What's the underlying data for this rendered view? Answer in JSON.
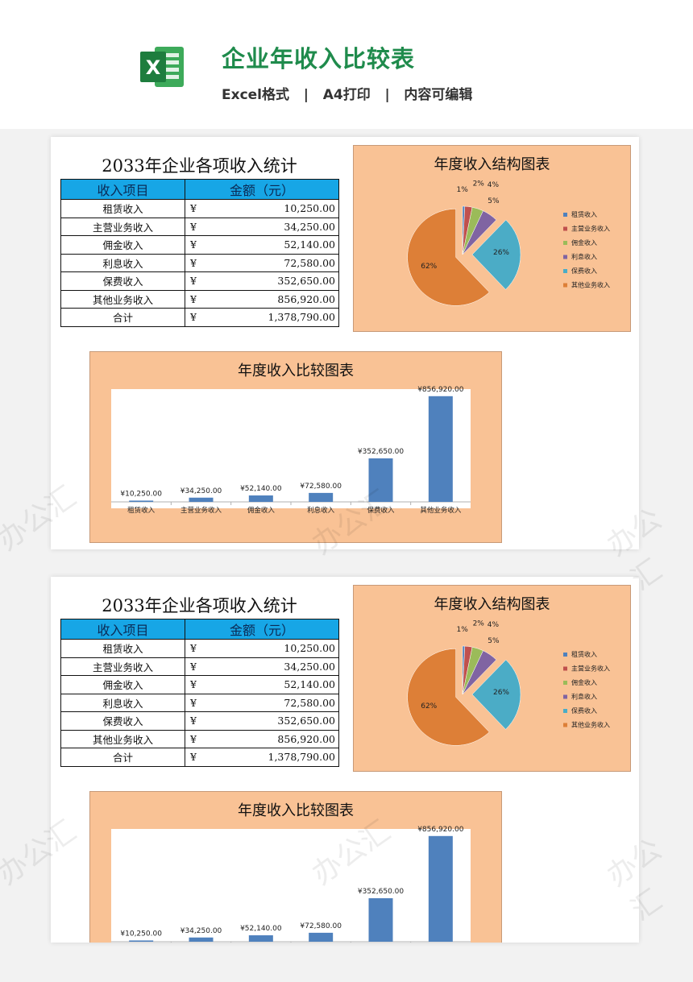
{
  "header": {
    "logo_letter": "X",
    "title": "企业年收入比较表",
    "subtitle": "Excel格式   |   A4打印   |   内容可编辑"
  },
  "colors": {
    "brand_green": "#1f8b4c",
    "table_header": "#17a6e6",
    "panel_bg": "#f9c295",
    "bar": "#4f81bd"
  },
  "watermark": "办公汇",
  "sheet": {
    "title": "2033年企业各项收入统计",
    "table": {
      "headers": [
        "收入项目",
        "金额（元）"
      ],
      "currency": "¥",
      "rows": [
        {
          "name": "租赁收入",
          "amount": "10,250.00"
        },
        {
          "name": "主营业务收入",
          "amount": "34,250.00"
        },
        {
          "name": "佣金收入",
          "amount": "52,140.00"
        },
        {
          "name": "利息收入",
          "amount": "72,580.00"
        },
        {
          "name": "保费收入",
          "amount": "352,650.00"
        },
        {
          "name": "其他业务收入",
          "amount": "856,920.00"
        },
        {
          "name": "合计",
          "amount": "1,378,790.00"
        }
      ]
    },
    "pie_title": "年度收入结构图表",
    "bar_title": "年度收入比较图表"
  },
  "chart_data": [
    {
      "type": "pie",
      "title": "年度收入结构图表",
      "categories": [
        "租赁收入",
        "主营业务收入",
        "佣金收入",
        "利息收入",
        "保费收入",
        "其他业务收入"
      ],
      "values": [
        10250,
        34250,
        52140,
        72580,
        352650,
        856920
      ],
      "data_labels": [
        "1%",
        "2%",
        "4%",
        "5%",
        "26%",
        "62%"
      ],
      "colors": [
        "#4f81bd",
        "#c0504d",
        "#9bbb59",
        "#8064a2",
        "#4bacc6",
        "#dd7f37"
      ],
      "legend": "right"
    },
    {
      "type": "bar",
      "title": "年度收入比较图表",
      "categories": [
        "租赁收入",
        "主营业务收入",
        "佣金收入",
        "利息收入",
        "保费收入",
        "其他业务收入"
      ],
      "values": [
        10250,
        34250,
        52140,
        72580,
        352650,
        856920
      ],
      "data_labels": [
        "¥10,250.00",
        "¥34,250.00",
        "¥52,140.00",
        "¥72,580.00",
        "¥352,650.00",
        "¥856,920.00"
      ],
      "ylim": [
        0,
        900000
      ],
      "grid": false
    }
  ]
}
